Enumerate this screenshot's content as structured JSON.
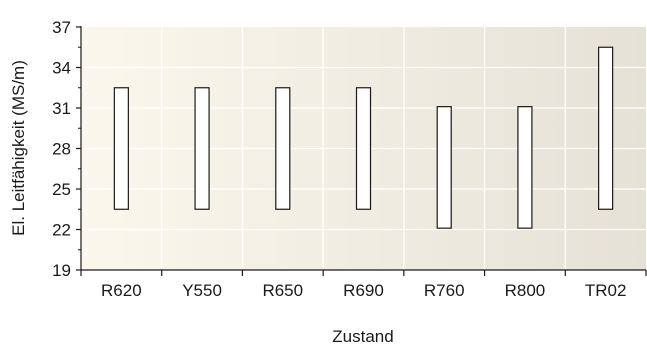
{
  "chart_data": {
    "type": "bar",
    "subtype": "floating-range",
    "xlabel": "Zustand",
    "ylabel": "El. Leitfähigkeit (MS/m)",
    "ylim": [
      19,
      37
    ],
    "yticks": [
      19,
      22,
      25,
      28,
      31,
      34,
      37
    ],
    "categories": [
      "R620",
      "Y550",
      "R650",
      "R690",
      "R760",
      "R800",
      "TR02"
    ],
    "ranges": [
      [
        23.5,
        32.5
      ],
      [
        23.5,
        32.5
      ],
      [
        23.5,
        32.5
      ],
      [
        23.5,
        32.5
      ],
      [
        22.1,
        31.1
      ],
      [
        22.1,
        31.1
      ],
      [
        23.5,
        35.5
      ]
    ],
    "grid": true,
    "colors": {
      "plot_bg_left": "#fbf7ec",
      "plot_bg_right": "#e6e1d6",
      "bar_fill": "#ffffff",
      "bar_stroke": "#1a1a1a",
      "grid": "#ffffff",
      "axis": "#1a1a1a"
    }
  }
}
